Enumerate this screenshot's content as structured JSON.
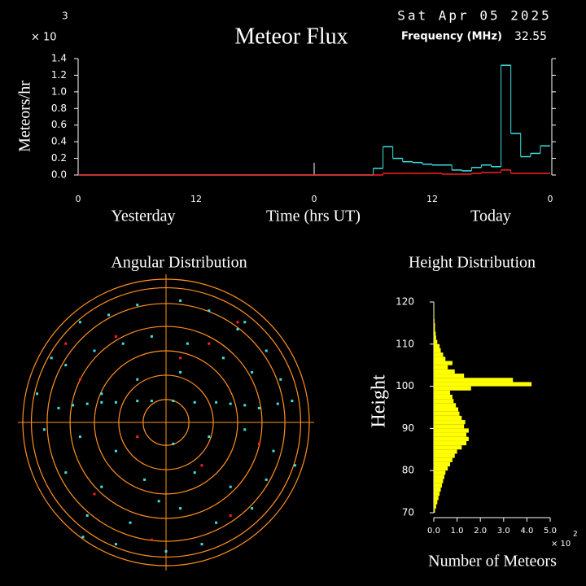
{
  "header": {
    "date": "Sat Apr 05 2025",
    "frequency_label": "Frequency (MHz)",
    "frequency": 32.55
  },
  "chart_data": [
    {
      "type": "step",
      "title": "Meteor Flux",
      "ylabel": "Meteors/hr",
      "xlabel": "Time (hrs UT)",
      "y_multiplier": "× 10",
      "y_exponent": 3,
      "annotations": [
        "Yesterday",
        "Today"
      ],
      "xlim": [
        0,
        48
      ],
      "xticks": [
        0,
        12,
        {
          "value": 24,
          "label": "0"
        },
        {
          "value": 36,
          "label": "12"
        },
        {
          "value": 48,
          "label": "0"
        }
      ],
      "ylim": [
        0,
        1.4
      ],
      "yticks": [
        {
          "value": 0,
          "label": "0.0"
        },
        0.2,
        0.4,
        0.6,
        0.8,
        {
          "value": 1,
          "label": "1.0"
        },
        1.2,
        1.4
      ],
      "x": [
        0,
        1,
        2,
        3,
        4,
        5,
        6,
        7,
        8,
        9,
        10,
        11,
        12,
        13,
        14,
        15,
        16,
        17,
        18,
        19,
        20,
        21,
        22,
        23,
        24,
        25,
        26,
        27,
        28,
        29,
        30,
        31,
        32,
        33,
        34,
        35,
        36,
        37,
        38,
        39,
        40,
        41,
        42,
        43,
        44,
        45,
        46,
        47
      ],
      "series": [
        {
          "color": "#40e0e0",
          "values": [
            0,
            0,
            0,
            0,
            0,
            0,
            0,
            0,
            0,
            0,
            0,
            0,
            0,
            0,
            0,
            0,
            0,
            0,
            0,
            0,
            0,
            0,
            0,
            0,
            0,
            0,
            0,
            0,
            0,
            0,
            0.08,
            0.34,
            0.2,
            0.16,
            0.15,
            0.13,
            0.12,
            0.12,
            0.06,
            0.05,
            0.09,
            0.12,
            0.1,
            1.32,
            0.5,
            0.22,
            0.26,
            0.35
          ]
        },
        {
          "color": "#ff2020",
          "values": [
            0,
            0,
            0,
            0,
            0,
            0,
            0,
            0,
            0,
            0,
            0,
            0,
            0,
            0,
            0,
            0,
            0,
            0,
            0,
            0,
            0,
            0,
            0,
            0,
            0,
            0,
            0,
            0,
            0,
            0,
            0,
            0.02,
            0.02,
            0.02,
            0.02,
            0.02,
            0.02,
            0.01,
            0.01,
            0.01,
            0.02,
            0.03,
            0.03,
            0.06,
            0.02,
            0.02,
            0.02,
            0.02
          ]
        }
      ]
    },
    {
      "type": "polar-scatter",
      "title": "Angular Distribution",
      "rlim": [
        0,
        1
      ],
      "rings": [
        0.16,
        0.33,
        0.5,
        0.67,
        0.83,
        0.94,
        1
      ],
      "ring_color": "#ff9020",
      "series": [
        {
          "color": "#40e0e0",
          "x": [
            -0.75,
            -0.65,
            -0.55,
            -0.45,
            -0.35,
            -0.2,
            -0.1,
            0.05,
            0.2,
            0.35,
            0.45,
            0.55,
            0.65,
            0.78,
            -0.6,
            -0.4,
            -0.2,
            0.1,
            0.3,
            0.5,
            0.7,
            -0.8,
            -0.7,
            -0.5,
            -0.3,
            -0.1,
            0.15,
            0.4,
            0.6,
            0.8,
            -0.85,
            -0.6,
            -0.35,
            0.05,
            0.3,
            0.55,
            0.75,
            -0.7,
            -0.45,
            -0.15,
            0.2,
            0.45,
            0.7,
            -0.55,
            -0.25,
            0.1,
            0.35,
            0.6,
            -0.35,
            0,
            0.25,
            -0.2,
            0.1,
            -0.58,
            0.88,
            -0.9,
            0.9,
            -0.05,
            0.55,
            -0.45
          ],
          "y": [
            0.1,
            0.12,
            0.13,
            0.14,
            0.14,
            0.15,
            0.15,
            0.15,
            0.14,
            0.14,
            0.13,
            0.12,
            0.1,
            0.13,
            0.7,
            0.75,
            0.82,
            0.85,
            0.78,
            0.65,
            0.5,
            0.45,
            0.4,
            0.5,
            0.55,
            0.6,
            0.55,
            0.45,
            0.35,
            0.3,
            -0.05,
            -0.1,
            -0.2,
            -0.15,
            -0.1,
            -0.05,
            -0.2,
            -0.35,
            -0.45,
            -0.4,
            -0.35,
            -0.45,
            -0.4,
            -0.65,
            -0.7,
            -0.6,
            -0.7,
            -0.6,
            -0.85,
            -0.9,
            -0.85,
            0.3,
            0.35,
            -0.8,
            0.15,
            0.2,
            -0.3,
            -0.55,
            0.7,
            0.2
          ]
        },
        {
          "color": "#ff2020",
          "x": [
            -0.35,
            0.3,
            -0.6,
            0.5,
            -0.2,
            0.1,
            0.65,
            -0.5,
            0.45,
            -0.1,
            0.25,
            -0.7
          ],
          "y": [
            0.6,
            0.55,
            0.3,
            0.7,
            -0.1,
            0.45,
            -0.15,
            -0.5,
            -0.65,
            -0.82,
            -0.3,
            0.55
          ]
        }
      ]
    },
    {
      "type": "histogram",
      "orientation": "horizontal",
      "title": "Height Distribution",
      "ylabel": "Height",
      "xlabel": "Number of Meteors",
      "x_multiplier": "× 10",
      "x_exponent": 2,
      "color": "#ffff00",
      "xlim": [
        0,
        5
      ],
      "xticks": [
        {
          "value": 0,
          "label": "0.0"
        },
        {
          "value": 1,
          "label": "1.0"
        },
        {
          "value": 2,
          "label": "2.0"
        },
        {
          "value": 3,
          "label": "3.0"
        },
        {
          "value": 4,
          "label": "4.0"
        },
        {
          "value": 5,
          "label": "5.0"
        }
      ],
      "ylim": [
        70,
        120
      ],
      "yticks": [
        70,
        80,
        90,
        100,
        110,
        120
      ],
      "bins": [
        70,
        71,
        72,
        73,
        74,
        75,
        76,
        77,
        78,
        79,
        80,
        81,
        82,
        83,
        84,
        85,
        86,
        87,
        88,
        89,
        90,
        91,
        92,
        93,
        94,
        95,
        96,
        97,
        98,
        99,
        100,
        101,
        102,
        103,
        104,
        105,
        106,
        107,
        108,
        109,
        110,
        111,
        112,
        113,
        114,
        115,
        116,
        117,
        118,
        119,
        120
      ],
      "values": [
        0.05,
        0.1,
        0.15,
        0.2,
        0.25,
        0.3,
        0.35,
        0.4,
        0.45,
        0.5,
        0.6,
        0.7,
        0.8,
        0.9,
        1,
        1.2,
        1.4,
        1.5,
        1.4,
        1.5,
        1.3,
        1.35,
        1.2,
        1.1,
        1.05,
        0.95,
        0.85,
        0.8,
        0.7,
        1.6,
        4.2,
        3.4,
        1.3,
        0.9,
        0.6,
        0.8,
        0.5,
        0.4,
        0.3,
        0.25,
        0.15,
        0.1,
        0.08,
        0.05,
        0.05,
        0.03,
        0.02,
        0.02,
        0.01,
        0.01
      ]
    }
  ]
}
